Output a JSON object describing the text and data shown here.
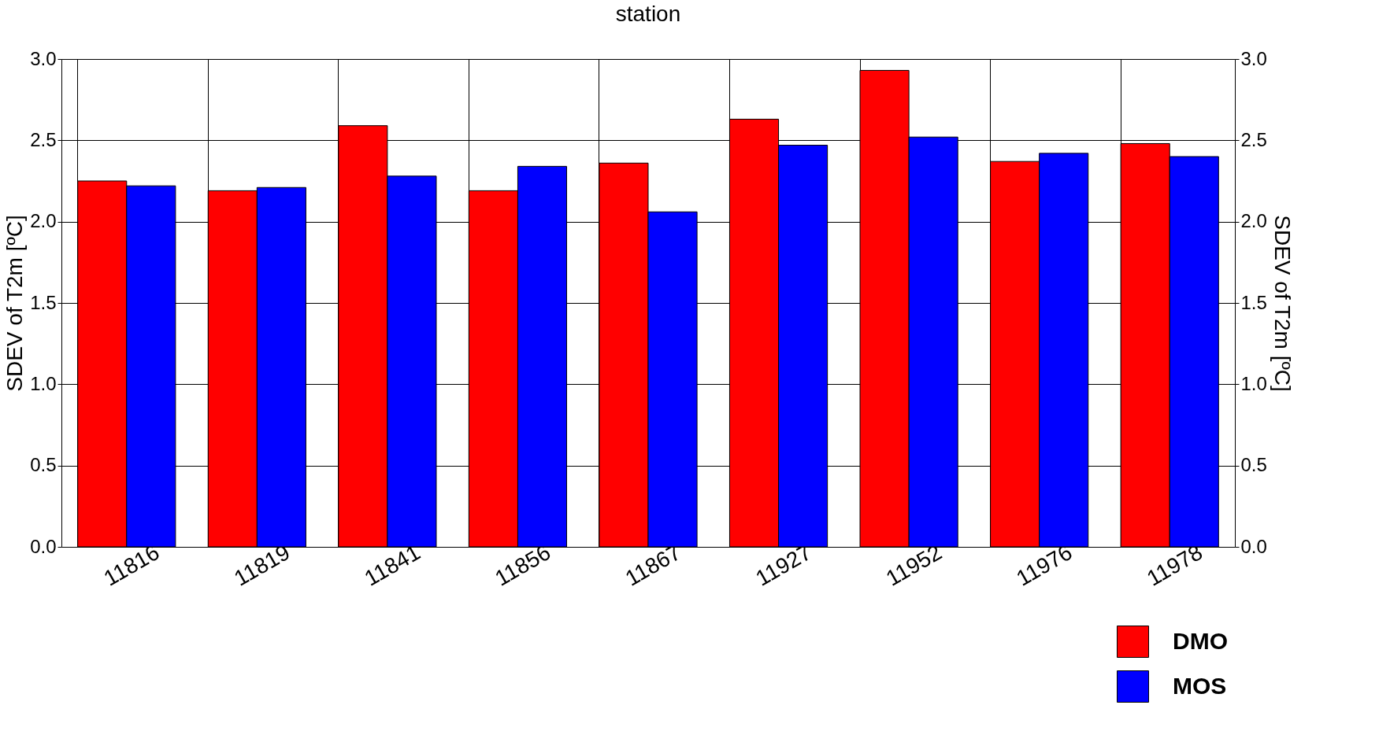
{
  "chart_data": {
    "type": "bar",
    "title": "station",
    "ylabel": "SDEV of T2m [ºC]",
    "y2label": "SDEV of T2m [ºC]",
    "categories": [
      "11816",
      "11819",
      "11841",
      "11856",
      "11867",
      "11927",
      "11952",
      "11976",
      "11978"
    ],
    "series": [
      {
        "name": "DMO",
        "color": "#ff0000",
        "values": [
          2.25,
          2.19,
          2.59,
          2.19,
          2.36,
          2.63,
          2.93,
          2.37,
          2.48
        ]
      },
      {
        "name": "MOS",
        "color": "#0000ff",
        "values": [
          2.22,
          2.21,
          2.28,
          2.34,
          2.06,
          2.47,
          2.52,
          2.42,
          2.4
        ]
      }
    ],
    "ylim": [
      0,
      3
    ],
    "yticks": [
      {
        "value": 0,
        "label": "0.0"
      },
      {
        "value": 0.5,
        "label": "0.5"
      },
      {
        "value": 1,
        "label": "1.0"
      },
      {
        "value": 1.5,
        "label": "1.5"
      },
      {
        "value": 2,
        "label": "2.0"
      },
      {
        "value": 2.5,
        "label": "2.5"
      },
      {
        "value": 3,
        "label": "3.0"
      }
    ],
    "y2lim": [
      0,
      3
    ],
    "y2ticks": [
      {
        "value": 0,
        "label": "0.0"
      },
      {
        "value": 0.5,
        "label": "0.5"
      },
      {
        "value": 1,
        "label": "1.0"
      },
      {
        "value": 1.5,
        "label": "1.5"
      },
      {
        "value": 2,
        "label": "2.0"
      },
      {
        "value": 2.5,
        "label": "2.5"
      },
      {
        "value": 3,
        "label": "3.0"
      }
    ],
    "grid": true,
    "legend": "bottom right"
  }
}
